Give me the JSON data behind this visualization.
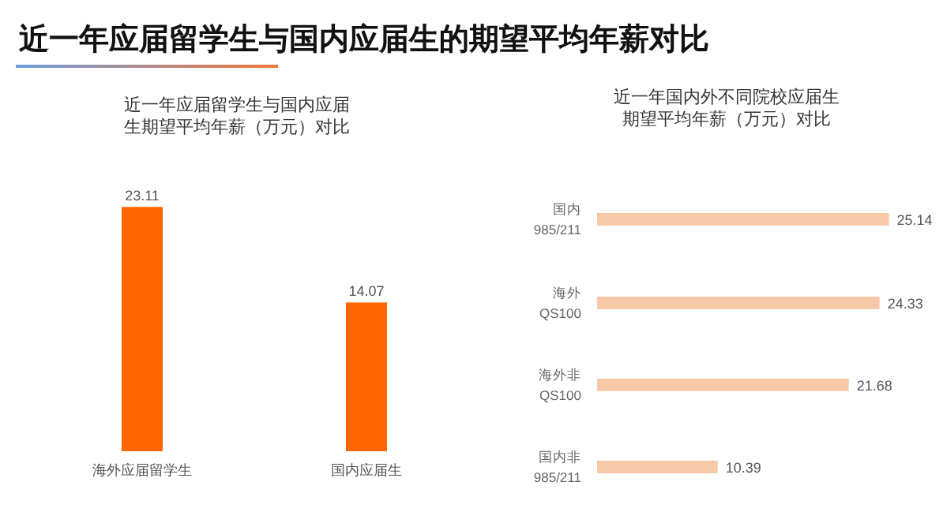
{
  "chart_data": [
    {
      "type": "other",
      "title": "近一年应届留学生与国内应届生的期望平均年薪对比"
    },
    {
      "type": "bar",
      "title": "近一年应届留学生与国内应届生期望平均年薪（万元）对比",
      "categories": [
        "海外应届留学生",
        "国内应届生"
      ],
      "values": [
        23.11,
        14.07
      ],
      "color": "#ff6600",
      "data_labels": true
    },
    {
      "type": "bar",
      "orientation": "horizontal",
      "title": "近一年国内外不同院校应届生期望平均年薪（万元）对比",
      "categories": [
        "国内 985/211",
        "海外 QS100",
        "海外非 QS100",
        "国内非 985/211"
      ],
      "values": [
        25.14,
        24.33,
        21.68,
        10.39
      ],
      "color": "#f8c9a9",
      "data_labels": true
    }
  ]
}
